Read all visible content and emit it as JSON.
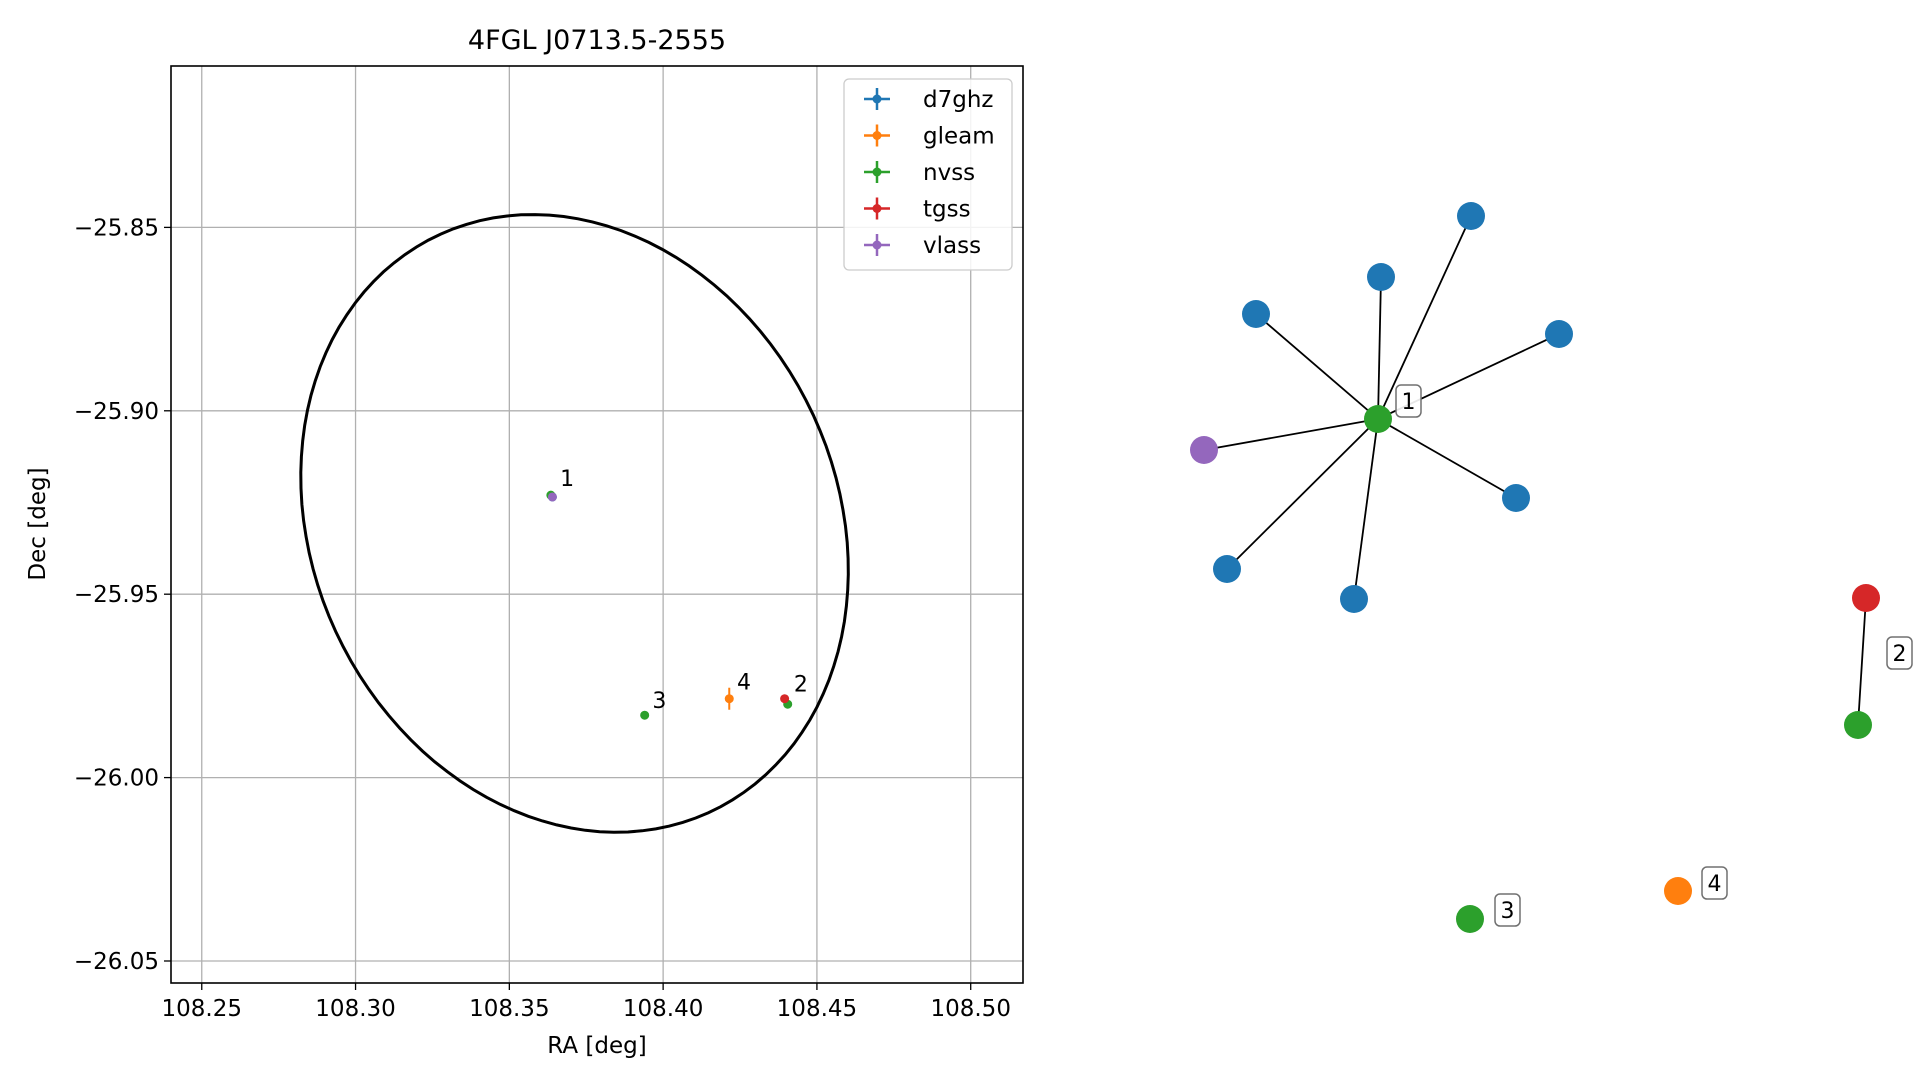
{
  "chart_data": [
    {
      "type": "scatter",
      "title": "4FGL J0713.5-2555",
      "xlabel": "RA [deg]",
      "ylabel": "Dec [deg]",
      "xlim": [
        108.24,
        108.517
      ],
      "ylim": [
        -26.056,
        -25.806
      ],
      "x_ticks": [
        "108.25",
        "108.30",
        "108.35",
        "108.40",
        "108.45",
        "108.50"
      ],
      "y_ticks": [
        "−25.85",
        "−25.90",
        "−25.95",
        "−26.00",
        "−26.05"
      ],
      "grid": true,
      "legend_position": "top-right",
      "series": [
        {
          "name": "d7ghz",
          "color": "#1f77b4",
          "points": [
            {
              "x": 108.364,
              "y": -25.9235,
              "xerr": 0.0003,
              "yerr": 0.0003
            }
          ]
        },
        {
          "name": "gleam",
          "color": "#ff7f0e",
          "points": [
            {
              "x": 108.4215,
              "y": -25.9785,
              "xerr": 0.0004,
              "yerr": 0.003
            }
          ]
        },
        {
          "name": "nvss",
          "color": "#2ca02c",
          "points": [
            {
              "x": 108.3635,
              "y": -25.923,
              "xerr": 0.0003,
              "yerr": 0.0003
            },
            {
              "x": 108.4405,
              "y": -25.98,
              "xerr": 0.0003,
              "yerr": 0.0003
            },
            {
              "x": 108.394,
              "y": -25.983,
              "xerr": 0.0003,
              "yerr": 0.0003
            }
          ]
        },
        {
          "name": "tgss",
          "color": "#d62728",
          "points": [
            {
              "x": 108.4395,
              "y": -25.9785,
              "xerr": 0.0003,
              "yerr": 0.0003
            }
          ]
        },
        {
          "name": "vlass",
          "color": "#9467bd",
          "points": [
            {
              "x": 108.364,
              "y": -25.9235,
              "xerr": 0.0002,
              "yerr": 0.0002
            }
          ]
        }
      ],
      "annotations": [
        {
          "text": "1",
          "x": 108.3665,
          "y": -25.9205
        },
        {
          "text": "2",
          "x": 108.4425,
          "y": -25.9765
        },
        {
          "text": "3",
          "x": 108.3965,
          "y": -25.981
        },
        {
          "text": "4",
          "x": 108.424,
          "y": -25.976
        }
      ],
      "ellipse": {
        "center": [
          108.3712,
          -25.9307
        ],
        "semi_major_deg": 0.0934,
        "semi_minor_deg": 0.0793,
        "position_angle_deg": 145,
        "color": "#000000"
      }
    },
    {
      "type": "network",
      "nodes": [
        {
          "id": "c1",
          "color": "#2ca02c",
          "label": "1"
        },
        {
          "id": "b1",
          "color": "#1f77b4"
        },
        {
          "id": "b2",
          "color": "#1f77b4"
        },
        {
          "id": "b3",
          "color": "#1f77b4"
        },
        {
          "id": "b4",
          "color": "#1f77b4"
        },
        {
          "id": "b5",
          "color": "#1f77b4"
        },
        {
          "id": "b6",
          "color": "#1f77b4"
        },
        {
          "id": "b7",
          "color": "#1f77b4"
        },
        {
          "id": "v1",
          "color": "#9467bd"
        },
        {
          "id": "r2",
          "color": "#d62728"
        },
        {
          "id": "g2",
          "color": "#2ca02c",
          "label": "2"
        },
        {
          "id": "g3",
          "color": "#2ca02c",
          "label": "3"
        },
        {
          "id": "o4",
          "color": "#ff7f0e",
          "label": "4"
        }
      ],
      "edges": [
        [
          "c1",
          "b1"
        ],
        [
          "c1",
          "b2"
        ],
        [
          "c1",
          "b3"
        ],
        [
          "c1",
          "b4"
        ],
        [
          "c1",
          "b5"
        ],
        [
          "c1",
          "b6"
        ],
        [
          "c1",
          "b7"
        ],
        [
          "c1",
          "v1"
        ],
        [
          "g2",
          "r2"
        ]
      ]
    }
  ]
}
